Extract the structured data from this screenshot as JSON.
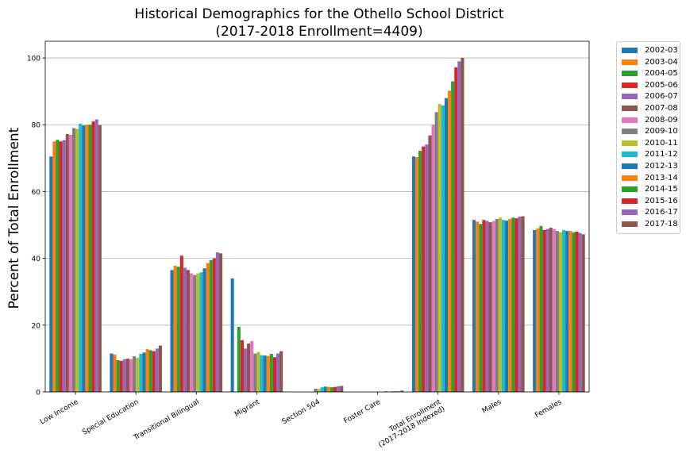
{
  "chart_data": {
    "type": "bar",
    "title": "Historical Demographics for the Othello School District",
    "subtitle": "(2017-2018 Enrollment=4409)",
    "ylabel": "Percent of Total Enrollment",
    "xlabel": "",
    "ylim": [
      0,
      105
    ],
    "yticks": [
      0,
      20,
      40,
      60,
      80,
      100
    ],
    "grid": "horizontal",
    "legend_position": "outside-right",
    "categories": [
      "Low Income",
      "Special Education",
      "Transitional Bilingual",
      "Migrant",
      "Section 504",
      "Foster Care",
      "Total Enrollment\n(2017-2018 Indexed)",
      "Males",
      "Females"
    ],
    "series": [
      {
        "name": "2002-03",
        "color": "#1f77b4",
        "values": [
          70.5,
          11.5,
          36.5,
          34.0,
          null,
          null,
          70.5,
          51.5,
          48.5
        ]
      },
      {
        "name": "2003-04",
        "color": "#ff7f0e",
        "values": [
          75.0,
          11.2,
          37.8,
          null,
          null,
          null,
          70.3,
          51.0,
          49.0
        ]
      },
      {
        "name": "2004-05",
        "color": "#2ca02c",
        "values": [
          75.5,
          9.5,
          37.5,
          19.5,
          null,
          null,
          72.2,
          50.3,
          49.7
        ]
      },
      {
        "name": "2005-06",
        "color": "#d62728",
        "values": [
          75.0,
          9.3,
          40.8,
          15.5,
          null,
          null,
          73.5,
          51.5,
          48.5
        ]
      },
      {
        "name": "2006-07",
        "color": "#9467bd",
        "values": [
          75.4,
          9.8,
          37.2,
          13.0,
          null,
          null,
          74.1,
          51.2,
          48.8
        ]
      },
      {
        "name": "2007-08",
        "color": "#8c564b",
        "values": [
          77.2,
          10.0,
          36.5,
          14.5,
          null,
          null,
          76.8,
          50.8,
          49.2
        ]
      },
      {
        "name": "2008-09",
        "color": "#e377c2",
        "values": [
          77.0,
          9.8,
          35.5,
          15.2,
          null,
          null,
          80.0,
          51.2,
          48.8
        ]
      },
      {
        "name": "2009-10",
        "color": "#7f7f7f",
        "values": [
          79.0,
          10.7,
          35.0,
          11.5,
          1.0,
          null,
          83.8,
          51.8,
          48.2
        ]
      },
      {
        "name": "2010-11",
        "color": "#bcbd22",
        "values": [
          78.8,
          10.2,
          35.5,
          12.0,
          0.9,
          null,
          86.2,
          52.2,
          47.8
        ]
      },
      {
        "name": "2011-12",
        "color": "#17becf",
        "values": [
          80.3,
          11.4,
          35.8,
          11.0,
          1.4,
          null,
          85.8,
          51.5,
          48.5
        ]
      },
      {
        "name": "2012-13",
        "color": "#1f77b4",
        "values": [
          79.8,
          11.8,
          37.0,
          10.9,
          1.6,
          0.2,
          88.0,
          51.3,
          48.2
        ]
      },
      {
        "name": "2013-14",
        "color": "#ff7f0e",
        "values": [
          80.0,
          12.8,
          38.6,
          10.8,
          1.5,
          0.1,
          90.2,
          51.8,
          48.2
        ]
      },
      {
        "name": "2014-15",
        "color": "#2ca02c",
        "values": [
          80.0,
          12.5,
          39.5,
          11.4,
          1.4,
          0.2,
          93.0,
          52.2,
          47.8
        ]
      },
      {
        "name": "2015-16",
        "color": "#d62728",
        "values": [
          81.0,
          12.2,
          40.0,
          10.4,
          1.5,
          0.2,
          97.2,
          52.0,
          48.0
        ]
      },
      {
        "name": "2016-17",
        "color": "#9467bd",
        "values": [
          81.6,
          13.0,
          41.8,
          11.5,
          1.7,
          0.2,
          99.0,
          52.5,
          47.6
        ]
      },
      {
        "name": "2017-18",
        "color": "#8c564b",
        "values": [
          79.9,
          13.9,
          41.5,
          12.2,
          1.8,
          0.4,
          100.0,
          52.6,
          47.2
        ]
      }
    ]
  }
}
